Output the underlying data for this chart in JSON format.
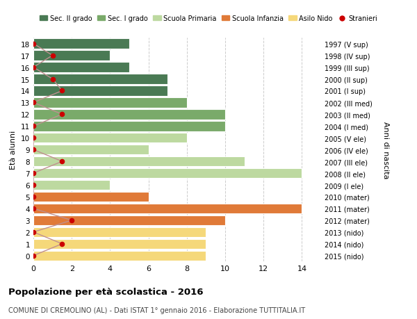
{
  "ages": [
    18,
    17,
    16,
    15,
    14,
    13,
    12,
    11,
    10,
    9,
    8,
    7,
    6,
    5,
    4,
    3,
    2,
    1,
    0
  ],
  "bar_values": [
    5,
    4,
    5,
    7,
    7,
    8,
    10,
    10,
    8,
    6,
    11,
    14,
    4,
    6,
    14,
    10,
    9,
    9,
    9
  ],
  "bar_colors": [
    "#4a7a54",
    "#4a7a54",
    "#4a7a54",
    "#4a7a54",
    "#4a7a54",
    "#7aaa6a",
    "#7aaa6a",
    "#7aaa6a",
    "#bdd9a0",
    "#bdd9a0",
    "#bdd9a0",
    "#bdd9a0",
    "#bdd9a0",
    "#e07a38",
    "#e07a38",
    "#e07a38",
    "#f5d87a",
    "#f5d87a",
    "#f5d87a"
  ],
  "stranieri_values": [
    0,
    1,
    0,
    1,
    1.5,
    0,
    1.5,
    0,
    0,
    0,
    1.5,
    0,
    0,
    0,
    0,
    2,
    0,
    1.5,
    0
  ],
  "right_labels": [
    "1997 (V sup)",
    "1998 (IV sup)",
    "1999 (III sup)",
    "2000 (II sup)",
    "2001 (I sup)",
    "2002 (III med)",
    "2003 (II med)",
    "2004 (I med)",
    "2005 (V ele)",
    "2006 (IV ele)",
    "2007 (III ele)",
    "2008 (II ele)",
    "2009 (I ele)",
    "2010 (mater)",
    "2011 (mater)",
    "2012 (mater)",
    "2013 (nido)",
    "2014 (nido)",
    "2015 (nido)"
  ],
  "legend_labels": [
    "Sec. II grado",
    "Sec. I grado",
    "Scuola Primaria",
    "Scuola Infanzia",
    "Asilo Nido",
    "Stranieri"
  ],
  "legend_colors": [
    "#4a7a54",
    "#7aaa6a",
    "#bdd9a0",
    "#e07a38",
    "#f5d87a",
    "#cc0000"
  ],
  "ylabel": "Età alunni",
  "right_ylabel": "Anni di nascita",
  "title_bold": "Popolazione per età scolastica - 2016",
  "subtitle": "COMUNE DI CREMOLINO (AL) - Dati ISTAT 1° gennaio 2016 - Elaborazione TUTTITALIA.IT",
  "xlim": [
    0,
    15
  ],
  "stranieri_color": "#cc0000",
  "stranieri_line_color": "#c09090",
  "bg_color": "#ffffff",
  "grid_color": "#cccccc"
}
